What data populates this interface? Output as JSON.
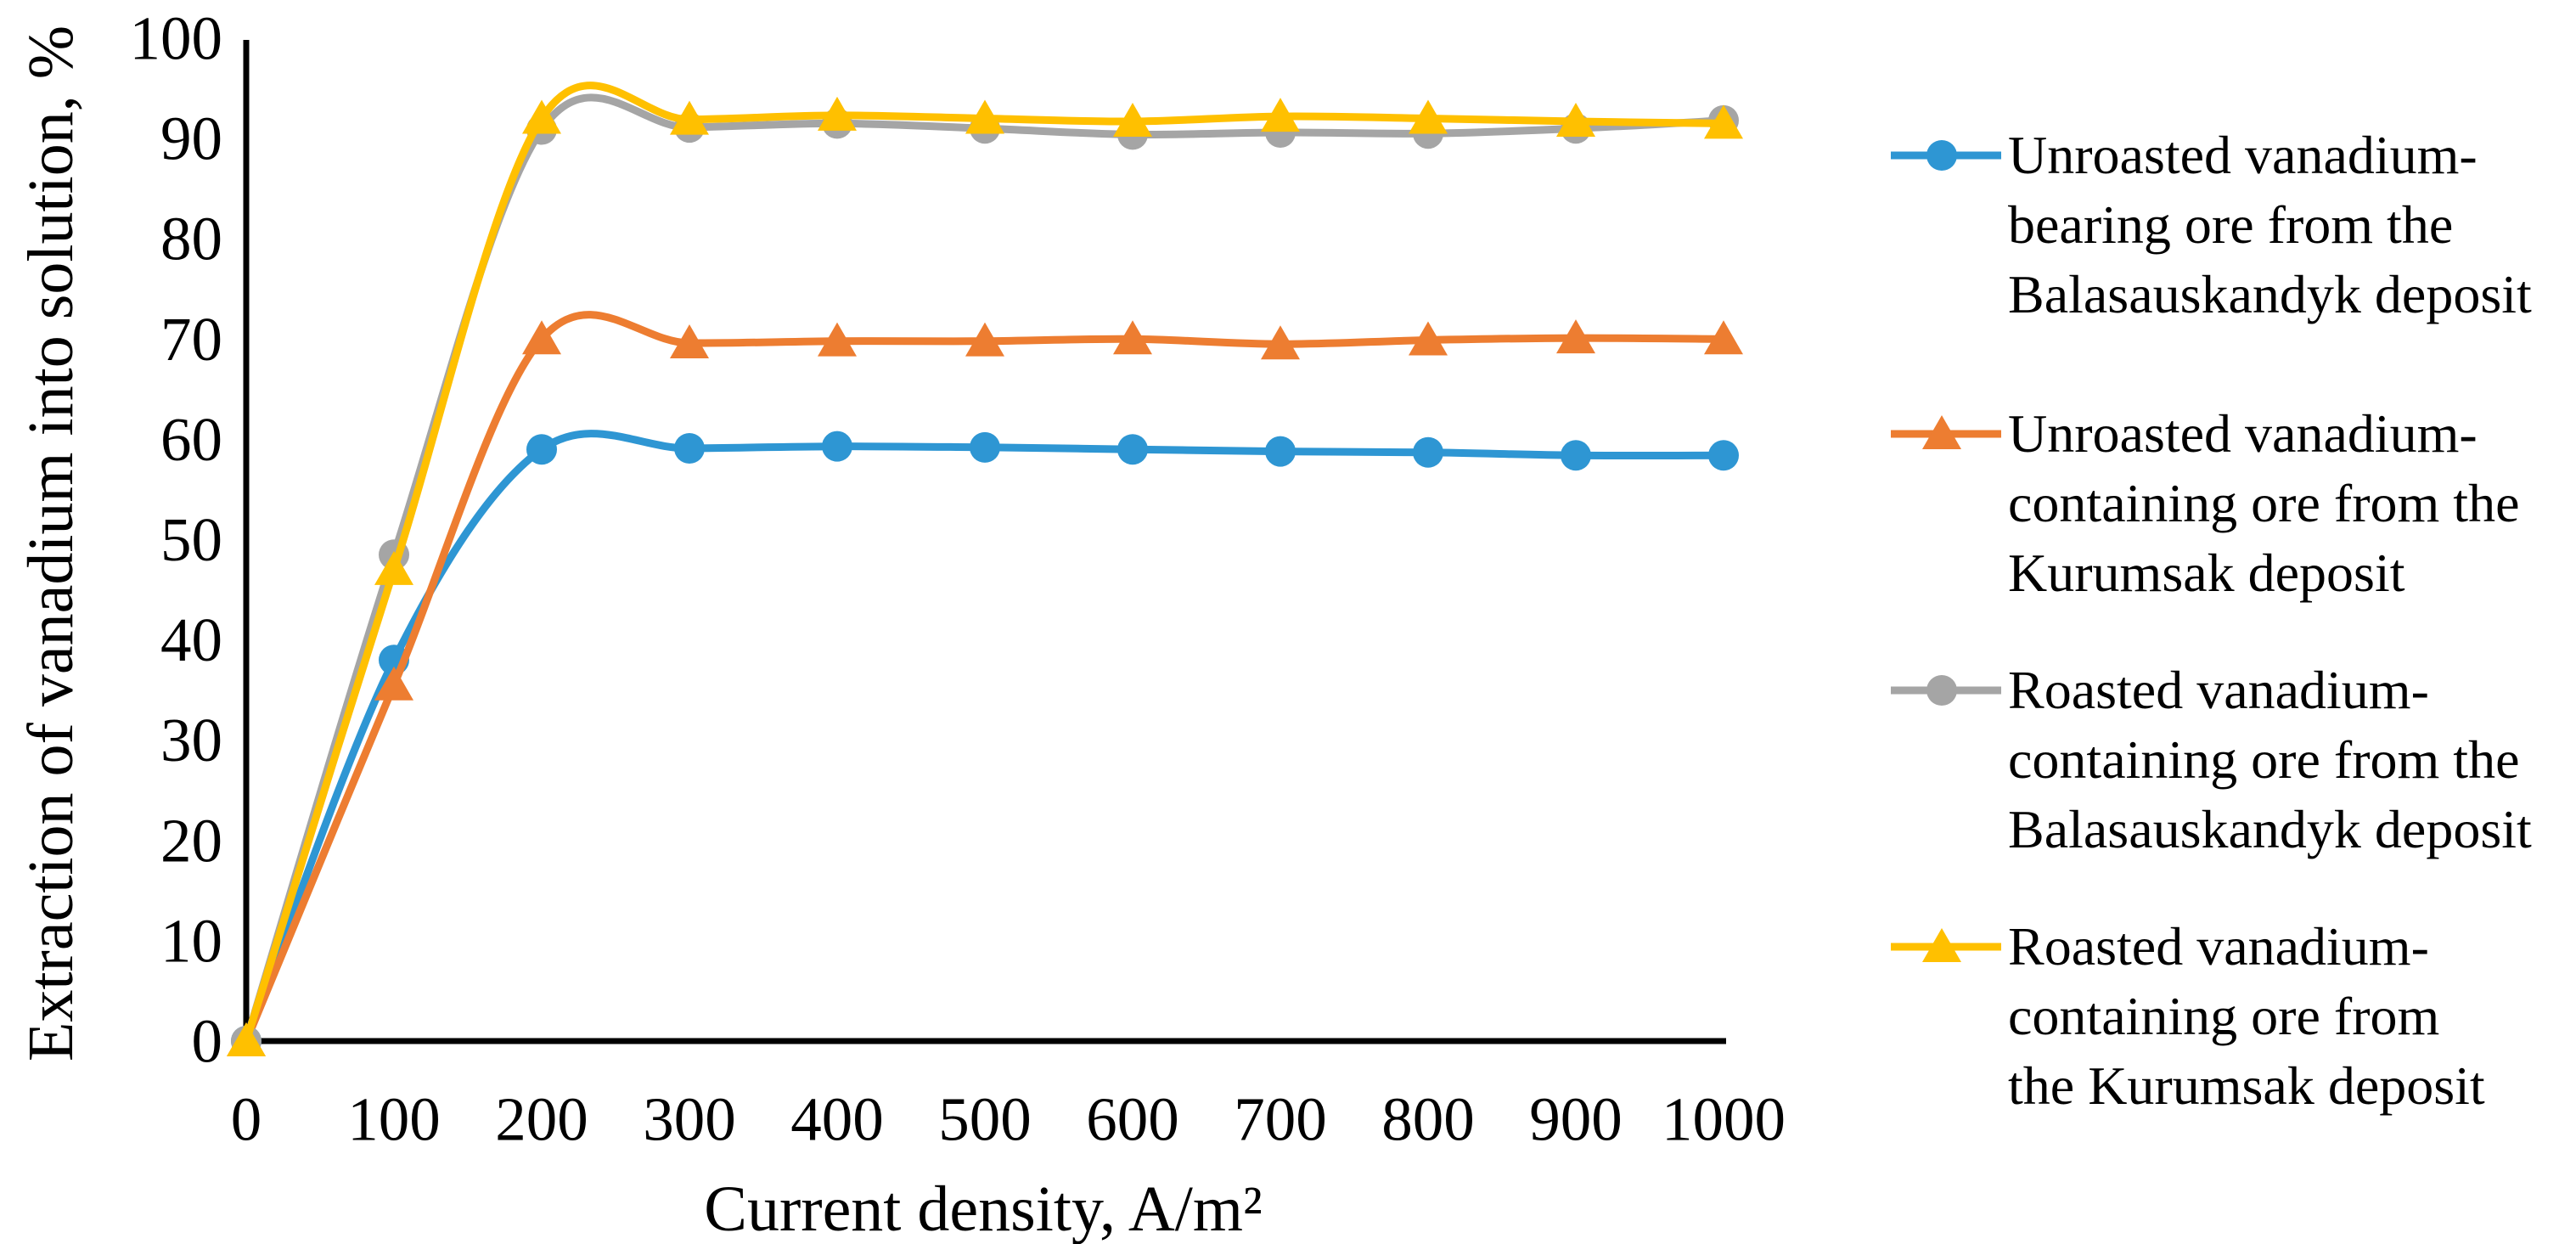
{
  "chart_data": {
    "type": "line",
    "smooth": true,
    "grid": false,
    "legend_position": "right",
    "xlabel": "Current density, A/m²",
    "ylabel": "Extraction of vanadium into solution, %",
    "xlim": [
      0,
      1000
    ],
    "ylim": [
      0,
      100
    ],
    "x_ticks": [
      0,
      100,
      200,
      300,
      400,
      500,
      600,
      700,
      800,
      900,
      1000
    ],
    "y_ticks": [
      0,
      10,
      20,
      30,
      40,
      50,
      60,
      70,
      80,
      90,
      100
    ],
    "x": [
      0,
      100,
      200,
      300,
      400,
      500,
      600,
      700,
      800,
      900,
      1000
    ],
    "series": [
      {
        "name": "Unroasted vanadium-bearing ore from the Balasauskandyk deposit",
        "marker": "circle",
        "color": "#2E96D3",
        "values": [
          0,
          38,
          59,
          59.1,
          59.3,
          59.2,
          59,
          58.8,
          58.7,
          58.4,
          58.4
        ]
      },
      {
        "name": "Unroasted vanadium-containing ore from the Kurumsak deposit",
        "marker": "triangle",
        "color": "#ED7D31",
        "values": [
          0,
          35.5,
          70,
          69.6,
          69.8,
          69.8,
          70,
          69.5,
          69.9,
          70.1,
          70
        ]
      },
      {
        "name": "Roasted vanadium-containing ore from the Balasauskandyk deposit",
        "marker": "circle",
        "color": "#A5A5A5",
        "values": [
          0,
          48.5,
          90.9,
          91.1,
          91.5,
          91,
          90.4,
          90.6,
          90.5,
          91,
          91.8
        ]
      },
      {
        "name": "Roasted vanadium-containing ore from the Kurumsak deposit",
        "marker": "triangle",
        "color": "#FFC000",
        "values": [
          0,
          47,
          92,
          91.9,
          92.3,
          92,
          91.7,
          92.2,
          92,
          91.7,
          91.5
        ]
      }
    ]
  },
  "legend": {
    "items": [
      {
        "marker": "circle",
        "color": "#2E96D3",
        "lines": [
          "Unroasted vanadium-",
          "bearing ore from the",
          "Balasauskandyk deposit"
        ]
      },
      {
        "marker": "triangle",
        "color": "#ED7D31",
        "lines": [
          "Unroasted vanadium-",
          "containing ore from the",
          "Kurumsak deposit"
        ]
      },
      {
        "marker": "circle",
        "color": "#A5A5A5",
        "lines": [
          "Roasted vanadium-",
          "containing ore from the",
          "Balasauskandyk deposit"
        ]
      },
      {
        "marker": "triangle",
        "color": "#FFC000",
        "lines": [
          "Roasted vanadium-",
          "containing ore from",
          "the Kurumsak deposit"
        ]
      }
    ]
  }
}
